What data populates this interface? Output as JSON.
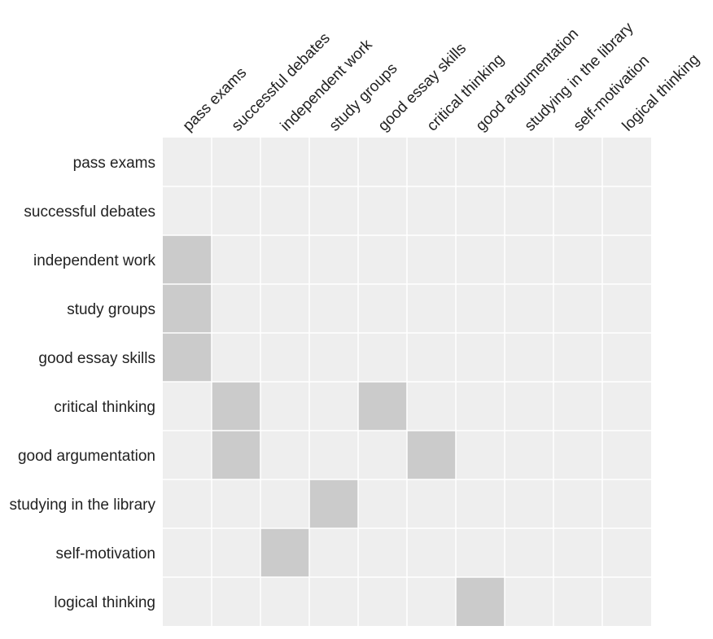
{
  "colors": {
    "empty_cell": "#eeeeee",
    "filled_cell": "#cbcbcb",
    "grid_line": "#ffffff",
    "label_text": "#222222"
  },
  "chart_data": {
    "type": "heatmap",
    "title": "",
    "xlabel": "",
    "ylabel": "",
    "grid": true,
    "legend": "none",
    "rows": [
      "pass exams",
      "successful debates",
      "independent work",
      "study groups",
      "good essay skills",
      "critical thinking",
      "good argumentation",
      "studying in the library",
      "self-motivation",
      "logical thinking"
    ],
    "columns": [
      "pass exams",
      "successful debates",
      "independent work",
      "study groups",
      "good essay skills",
      "critical thinking",
      "good argumentation",
      "studying in the library",
      "self-motivation",
      "logical thinking"
    ],
    "values": [
      [
        0,
        0,
        0,
        0,
        0,
        0,
        0,
        0,
        0,
        0
      ],
      [
        0,
        0,
        0,
        0,
        0,
        0,
        0,
        0,
        0,
        0
      ],
      [
        1,
        0,
        0,
        0,
        0,
        0,
        0,
        0,
        0,
        0
      ],
      [
        1,
        0,
        0,
        0,
        0,
        0,
        0,
        0,
        0,
        0
      ],
      [
        1,
        0,
        0,
        0,
        0,
        0,
        0,
        0,
        0,
        0
      ],
      [
        0,
        1,
        0,
        0,
        1,
        0,
        0,
        0,
        0,
        0
      ],
      [
        0,
        1,
        0,
        0,
        0,
        1,
        0,
        0,
        0,
        0
      ],
      [
        0,
        0,
        0,
        1,
        0,
        0,
        0,
        0,
        0,
        0
      ],
      [
        0,
        0,
        1,
        0,
        0,
        0,
        0,
        0,
        0,
        0
      ],
      [
        0,
        0,
        0,
        0,
        0,
        0,
        1,
        0,
        0,
        0
      ]
    ]
  }
}
